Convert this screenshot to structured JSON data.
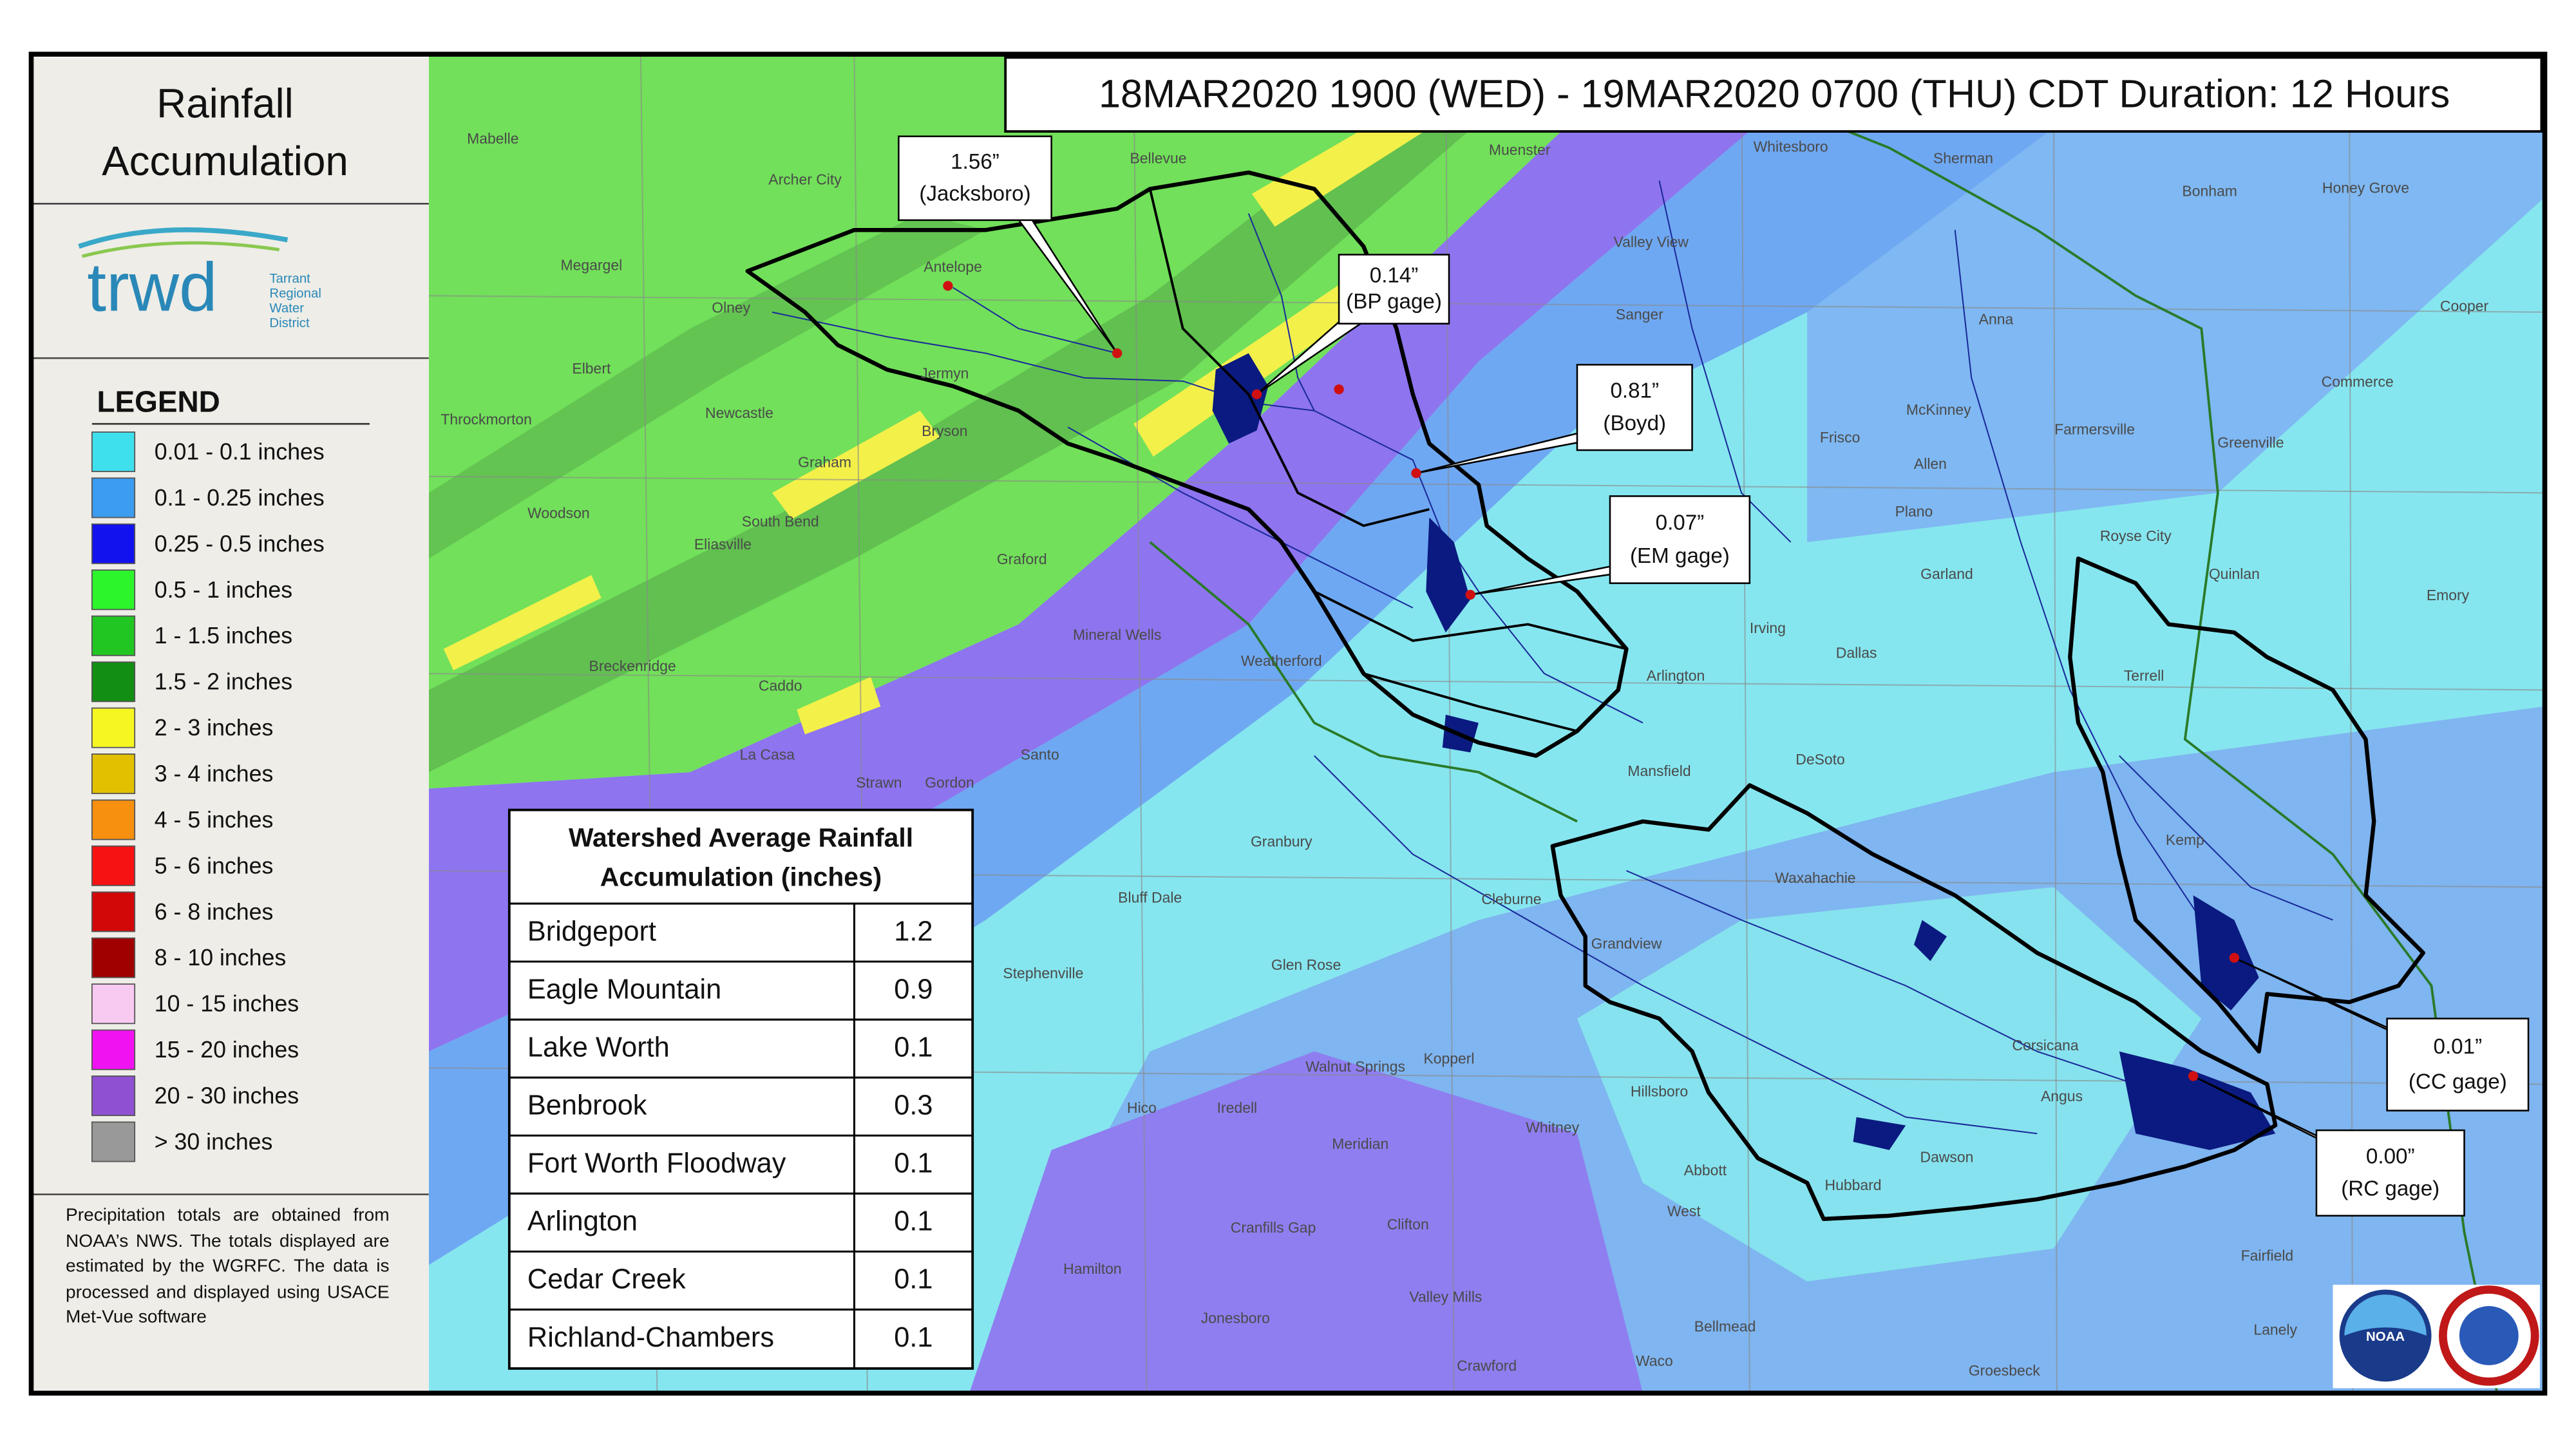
{
  "sidebar": {
    "title_lines": [
      "Rainfall",
      "Accumulation"
    ],
    "logo": {
      "name": "trwd",
      "lines": [
        "Tarrant",
        "Regional",
        "Water",
        "District"
      ]
    },
    "legend": {
      "title": "LEGEND",
      "items": [
        {
          "label": "0.01 - 0.1 inches",
          "color": "#3fe0ee"
        },
        {
          "label": "0.1 - 0.25 inches",
          "color": "#3b9cf0"
        },
        {
          "label": "0.25 - 0.5 inches",
          "color": "#1212ee"
        },
        {
          "label": "0.5 - 1 inches",
          "color": "#2cf52c"
        },
        {
          "label": "1 - 1.5 inches",
          "color": "#22c622"
        },
        {
          "label": "1.5 - 2 inches",
          "color": "#128e12"
        },
        {
          "label": "2 - 3 inches",
          "color": "#f6f622"
        },
        {
          "label": "3 - 4 inches",
          "color": "#e2c000"
        },
        {
          "label": "4 - 5 inches",
          "color": "#f6900e"
        },
        {
          "label": "5 - 6 inches",
          "color": "#f61212"
        },
        {
          "label": "6 - 8 inches",
          "color": "#d20808"
        },
        {
          "label": "8 - 10 inches",
          "color": "#a00000"
        },
        {
          "label": "10 - 15 inches",
          "color": "#f8caf2"
        },
        {
          "label": "15 - 20 inches",
          "color": "#f012f0"
        },
        {
          "label": "20 - 30 inches",
          "color": "#9050d2"
        },
        {
          "label": "> 30 inches",
          "color": "#999999"
        }
      ]
    },
    "note": "Precipitation totals are obtained from NOAA’s NWS. The totals displayed are estimated by the WGRFC. The data is processed and displayed using USACE Met-Vue software"
  },
  "header": {
    "title": "18MAR2020 1900 (WED) - 19MAR2020 0700 (THU) CDT Duration: 12 Hours"
  },
  "table": {
    "title_lines": [
      "Watershed Average Rainfall",
      "Accumulation (inches)"
    ],
    "rows": [
      [
        "Bridgeport",
        1.2
      ],
      [
        "Eagle Mountain",
        0.9
      ],
      [
        "Lake Worth",
        0.1
      ],
      [
        "Benbrook",
        0.3
      ],
      [
        "Fort Worth Floodway",
        0.1
      ],
      [
        "Arlington",
        0.1
      ],
      [
        "Cedar Creek",
        0.1
      ],
      [
        "Richland-Chambers",
        0.1
      ]
    ]
  },
  "annotations": [
    {
      "value": "1.56”",
      "place": "(Jacksboro)"
    },
    {
      "value": "0.14”",
      "place": "(BP gage)"
    },
    {
      "value": "0.81”",
      "place": "(Boyd)"
    },
    {
      "value": "0.07”",
      "place": "(EM gage)"
    },
    {
      "value": "0.01”",
      "place": "(CC gage)"
    },
    {
      "value": "0.00”",
      "place": "(RC gage)"
    }
  ],
  "towns": [
    "Mabelle",
    "Archer City",
    "Bellevue",
    "Muenster",
    "Whitesboro",
    "Sherman",
    "Bonham",
    "Honey Grove",
    "Megargel",
    "Olney",
    "Antelope",
    "Jermyn",
    "Elbert",
    "Throckmorton",
    "Newcastle",
    "Bryson",
    "Graham",
    "South Bend",
    "Woodson",
    "Eliasville",
    "Graford",
    "Mineral Wells",
    "Breckenridge",
    "Caddo",
    "Weatherford",
    "Santo",
    "La Casa",
    "Strawn",
    "Gordon",
    "Granbury",
    "Bluff Dale",
    "Stephenville",
    "Glen Rose",
    "Hico",
    "Iredell",
    "Meridian",
    "Walnut Springs",
    "Kopperl",
    "Cranfills Gap",
    "Clifton",
    "Hamilton",
    "Jonesboro",
    "Valley Mills",
    "Crawford",
    "Waco",
    "Bellmead",
    "Whitney",
    "Hillsboro",
    "Abbott",
    "West",
    "Cleburne",
    "Grandview",
    "Waxahachie",
    "Mansfield",
    "DeSoto",
    "Dallas",
    "Irving",
    "Arlington",
    "Garland",
    "Plano",
    "Allen",
    "McKinney",
    "Frisco",
    "Sanger",
    "Valley View",
    "Anna",
    "Farmersville",
    "Greenville",
    "Commerce",
    "Cooper",
    "Emory",
    "Quinlan",
    "Royse City",
    "Terrell",
    "Corsicana",
    "Angus",
    "Dawson",
    "Hubbard",
    "Fairfield",
    "Groesbeck",
    "Lanely",
    "Kemp"
  ],
  "logos": [
    "NOAA"
  ]
}
